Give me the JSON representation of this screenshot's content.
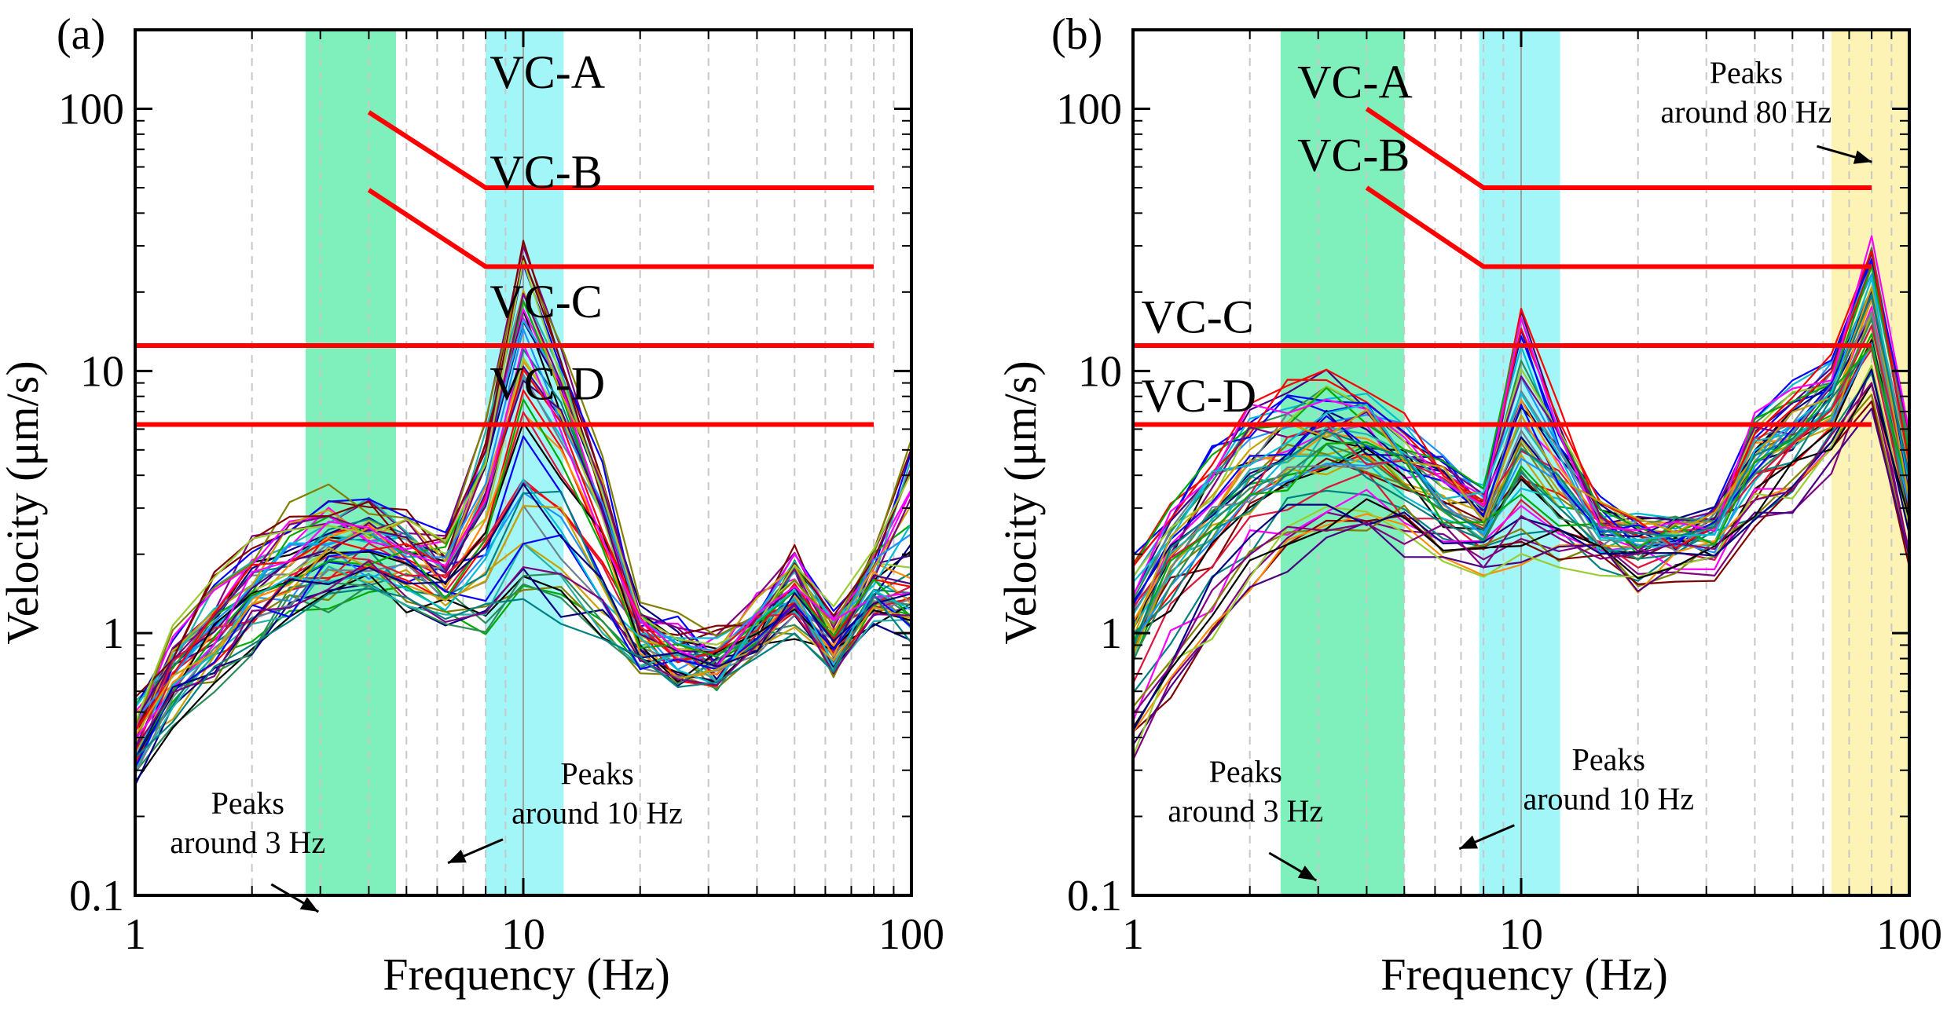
{
  "chart_data": [
    {
      "panel": "(a)",
      "type": "line",
      "xscale": "log",
      "yscale": "log",
      "xlim": [
        1,
        100
      ],
      "ylim": [
        0.1,
        200
      ],
      "xlabel": "Frequency (Hz)",
      "ylabel": "Velocity (μm/s)",
      "xticks": [
        {
          "v": 1,
          "label": "1"
        },
        {
          "v": 10,
          "label": "10"
        },
        {
          "v": 100,
          "label": "100"
        }
      ],
      "yticks": [
        {
          "v": 0.1,
          "label": "0.1"
        },
        {
          "v": 1,
          "label": "1"
        },
        {
          "v": 10,
          "label": "10"
        },
        {
          "v": 100,
          "label": "100"
        }
      ],
      "bands": [
        {
          "name": "band-3hz",
          "x0": 2.75,
          "x1": 4.7,
          "color": "#7ff0bc"
        },
        {
          "name": "band-10hz",
          "x0": 8.0,
          "x1": 12.7,
          "color": "#a3f6f8"
        }
      ],
      "criteria": [
        {
          "name": "VC-A",
          "points": [
            [
              4.0,
              97
            ],
            [
              8.0,
              50
            ],
            [
              80,
              50
            ]
          ],
          "label_at": [
            8.2,
            120
          ]
        },
        {
          "name": "VC-B",
          "points": [
            [
              4.0,
              49
            ],
            [
              8.0,
              25
            ],
            [
              80,
              25
            ]
          ],
          "label_at": [
            8.2,
            50
          ]
        },
        {
          "name": "VC-C",
          "points": [
            [
              1,
              12.5
            ],
            [
              80,
              12.5
            ]
          ],
          "label_at": [
            8.2,
            16
          ]
        },
        {
          "name": "VC-D",
          "points": [
            [
              1,
              6.25
            ],
            [
              80,
              6.25
            ]
          ],
          "label_at": [
            8.2,
            7.8
          ]
        }
      ],
      "measured_curves": {
        "count": 50,
        "profiles": [
          {
            "freq": [
              1,
              1.25,
              1.6,
              2,
              2.5,
              3.15,
              4,
              5,
              6.3,
              8,
              10,
              12.5,
              16,
              20,
              25,
              31.5,
              40,
              50,
              63,
              80,
              100
            ],
            "velocity": [
              0.5,
              0.95,
              1.5,
              2.1,
              2.7,
              3.1,
              2.9,
              2.6,
              2.2,
              6,
              31,
              12,
              4,
              1.2,
              1.0,
              0.9,
              1.3,
              1.9,
              1.1,
              2.0,
              5.5
            ]
          },
          {
            "freq": [
              1,
              1.25,
              1.6,
              2,
              2.5,
              3.15,
              4,
              5,
              6.3,
              8,
              10,
              12.5,
              16,
              20,
              25,
              31.5,
              40,
              50,
              63,
              80,
              100
            ],
            "velocity": [
              0.4,
              0.7,
              1.0,
              1.4,
              1.8,
              2.2,
              2.3,
              2.0,
              1.7,
              3,
              9,
              6,
              2.5,
              1.0,
              0.8,
              0.75,
              1.0,
              1.4,
              0.9,
              1.5,
              1.3
            ]
          },
          {
            "freq": [
              1,
              1.25,
              1.6,
              2,
              2.5,
              3.15,
              4,
              5,
              6.3,
              8,
              10,
              12.5,
              16,
              20,
              25,
              31.5,
              40,
              50,
              63,
              80,
              100
            ],
            "velocity": [
              0.3,
              0.5,
              0.7,
              0.95,
              1.2,
              1.4,
              1.5,
              1.4,
              1.2,
              1.1,
              1.3,
              1.2,
              1.0,
              0.8,
              0.7,
              0.7,
              0.9,
              1.1,
              0.8,
              1.2,
              1.1
            ]
          }
        ]
      },
      "annotations": [
        {
          "name": "peaks-3hz",
          "lines": [
            "Peaks",
            "around 3 Hz"
          ],
          "at": [
            1.95,
            0.205
          ]
        },
        {
          "name": "peaks-10hz",
          "lines": [
            "Peaks",
            "around 10 Hz"
          ],
          "at": [
            15.5,
            0.265
          ]
        }
      ]
    },
    {
      "panel": "(b)",
      "type": "line",
      "xscale": "log",
      "yscale": "log",
      "xlim": [
        1,
        100
      ],
      "ylim": [
        0.1,
        200
      ],
      "xlabel": "Frequency (Hz)",
      "ylabel": "Velocity (μm/s)",
      "xticks": [
        {
          "v": 1,
          "label": "1"
        },
        {
          "v": 10,
          "label": "10"
        },
        {
          "v": 100,
          "label": "100"
        }
      ],
      "yticks": [
        {
          "v": 0.1,
          "label": "0.1"
        },
        {
          "v": 1,
          "label": "1"
        },
        {
          "v": 10,
          "label": "10"
        },
        {
          "v": 100,
          "label": "100"
        }
      ],
      "bands": [
        {
          "name": "band-3hz",
          "x0": 2.4,
          "x1": 5.0,
          "color": "#7ff0bc"
        },
        {
          "name": "band-10hz",
          "x0": 7.8,
          "x1": 12.6,
          "color": "#a3f6f8"
        },
        {
          "name": "band-80hz",
          "x0": 63,
          "x1": 100,
          "color": "#fdf3b4"
        }
      ],
      "criteria": [
        {
          "name": "VC-A",
          "points": [
            [
              4.0,
              100
            ],
            [
              8.0,
              50
            ],
            [
              80,
              50
            ]
          ],
          "label_at": [
            2.65,
            110
          ]
        },
        {
          "name": "VC-B",
          "points": [
            [
              4.0,
              50
            ],
            [
              8.0,
              25
            ],
            [
              80,
              25
            ]
          ],
          "label_at": [
            2.65,
            58
          ]
        },
        {
          "name": "VC-C",
          "points": [
            [
              1,
              12.5
            ],
            [
              80,
              12.5
            ]
          ],
          "label_at": [
            1.05,
            14
          ]
        },
        {
          "name": "VC-D",
          "points": [
            [
              1,
              6.25
            ],
            [
              80,
              6.25
            ]
          ],
          "label_at": [
            1.05,
            7
          ]
        }
      ],
      "measured_curves": {
        "count": 50,
        "profiles": [
          {
            "freq": [
              1,
              1.25,
              1.6,
              2,
              2.5,
              3.15,
              4,
              5,
              6.3,
              8,
              10,
              12.5,
              16,
              20,
              25,
              31.5,
              40,
              50,
              63,
              80,
              100
            ],
            "velocity": [
              1.7,
              3.0,
              4.8,
              6.5,
              8.0,
              9.0,
              8.0,
              6.0,
              4.5,
              3.5,
              16,
              7,
              3,
              2.5,
              2.5,
              2.8,
              6,
              8,
              10,
              30,
              5
            ]
          },
          {
            "freq": [
              1,
              1.25,
              1.6,
              2,
              2.5,
              3.15,
              4,
              5,
              6.3,
              8,
              10,
              12.5,
              16,
              20,
              25,
              31.5,
              40,
              50,
              63,
              80,
              100
            ],
            "velocity": [
              0.9,
              1.6,
              2.4,
              3.2,
              4.0,
              4.6,
              4.5,
              3.8,
              3.0,
              2.5,
              4,
              3,
              2.4,
              2.2,
              2.3,
              2.4,
              4,
              5,
              7,
              14,
              3
            ]
          },
          {
            "freq": [
              1,
              1.25,
              1.6,
              2,
              2.5,
              3.15,
              4,
              5,
              6.3,
              8,
              10,
              12.5,
              16,
              20,
              25,
              31.5,
              40,
              50,
              63,
              80,
              100
            ],
            "velocity": [
              0.32,
              0.55,
              0.9,
              1.4,
              1.9,
              2.2,
              2.3,
              2.2,
              2.0,
              1.8,
              1.9,
              1.9,
              1.8,
              1.6,
              1.7,
              1.8,
              2.6,
              3.2,
              4.5,
              8,
              2
            ]
          }
        ]
      },
      "annotations": [
        {
          "name": "peaks-3hz",
          "lines": [
            "Peaks",
            "around 3 Hz"
          ],
          "at": [
            1.95,
            0.27
          ]
        },
        {
          "name": "peaks-10hz",
          "lines": [
            "Peaks",
            "around 10 Hz"
          ],
          "at": [
            16.8,
            0.3
          ]
        },
        {
          "name": "peaks-80hz",
          "lines": [
            "Peaks",
            "around 80 Hz"
          ],
          "at": [
            38,
            125
          ]
        }
      ]
    }
  ]
}
